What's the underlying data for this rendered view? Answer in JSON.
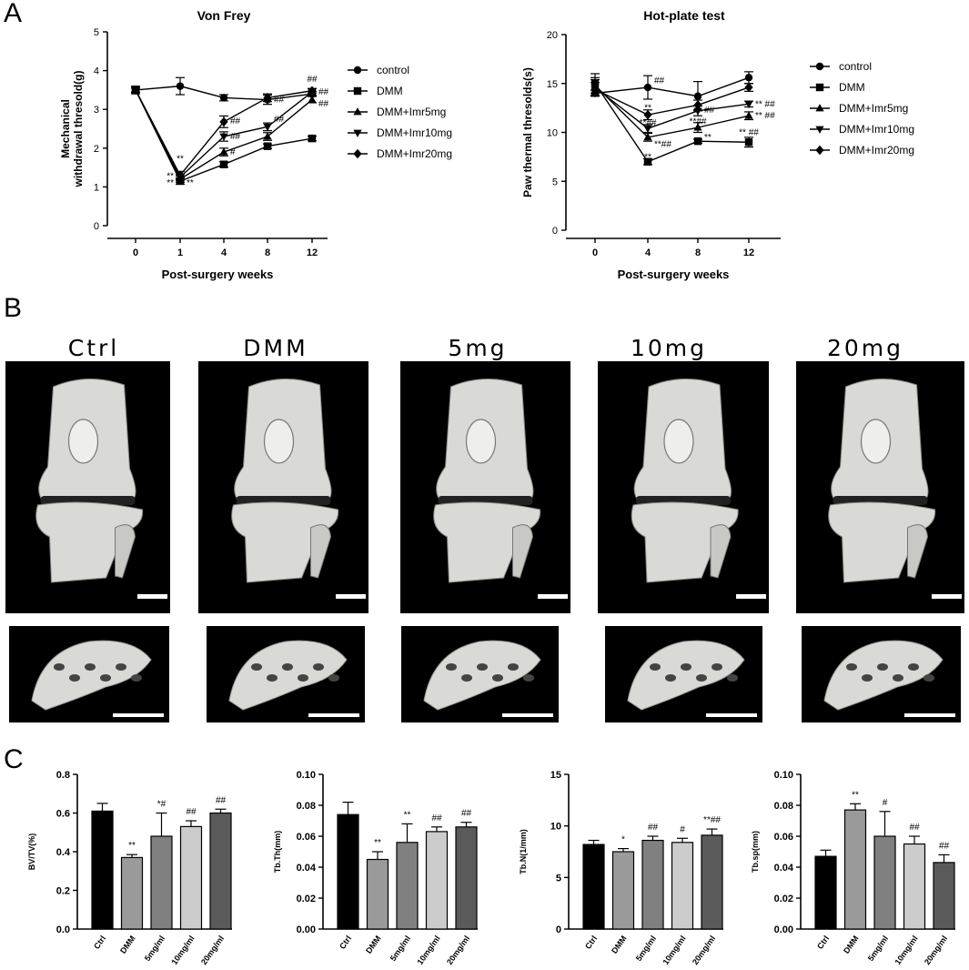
{
  "panels": {
    "a": "A",
    "b": "B",
    "c": "C"
  },
  "chart_data": [
    {
      "id": "vonfrey",
      "type": "line",
      "title": "Von Frey",
      "xlabel": "Post-surgery weeks",
      "ylabel_lines": [
        "Mechanical",
        "withdrawal thresold(g)"
      ],
      "categories": [
        "0",
        "1",
        "4",
        "8",
        "12"
      ],
      "ylim": [
        0,
        5
      ],
      "yticks": [
        "0",
        "1",
        "2",
        "3",
        "4",
        "5"
      ],
      "series": [
        {
          "name": "control",
          "marker": "circle",
          "values": [
            3.5,
            3.6,
            3.3,
            3.25,
            3.4
          ],
          "err": [
            0.1,
            0.22,
            0.08,
            0.12,
            0.06
          ]
        },
        {
          "name": "DMM",
          "marker": "square",
          "values": [
            3.5,
            1.15,
            1.58,
            2.05,
            2.25
          ],
          "err": [
            0.06,
            0.08,
            0.07,
            0.06,
            0.06
          ]
        },
        {
          "name": "DMM+Imr5mg",
          "marker": "triangle-up",
          "values": [
            3.5,
            1.2,
            1.9,
            2.3,
            3.25
          ],
          "err": [
            0.05,
            0.08,
            0.1,
            0.1,
            0.08
          ]
        },
        {
          "name": "DMM+Imr10mg",
          "marker": "triangle-down",
          "values": [
            3.5,
            1.25,
            2.3,
            2.55,
            3.45
          ],
          "err": [
            0.05,
            0.08,
            0.12,
            0.1,
            0.08
          ]
        },
        {
          "name": "DMM+Imr20mg",
          "marker": "diamond",
          "values": [
            3.5,
            1.3,
            2.68,
            3.3,
            3.48
          ],
          "err": [
            0.05,
            0.1,
            0.15,
            0.1,
            0.06
          ]
        }
      ],
      "annotations": [
        {
          "x": 1,
          "y": 1.72,
          "text": "**"
        },
        {
          "x": 1,
          "y": 1.28,
          "text": "**",
          "pos": "left"
        },
        {
          "x": 1,
          "y": 1.1,
          "text": "**",
          "pos": "left"
        },
        {
          "x": 1,
          "y": 1.1,
          "text": "**",
          "pos": "right"
        },
        {
          "x": 4,
          "y": 2.7,
          "text": "##",
          "pos": "right"
        },
        {
          "x": 4,
          "y": 2.3,
          "text": "##",
          "pos": "right"
        },
        {
          "x": 4,
          "y": 1.9,
          "text": "#",
          "pos": "right"
        },
        {
          "x": 8,
          "y": 2.75,
          "text": "##",
          "pos": "right"
        },
        {
          "x": 8,
          "y": 3.25,
          "text": "##",
          "pos": "right"
        },
        {
          "x": 12,
          "y": 3.78,
          "text": "##"
        },
        {
          "x": 12,
          "y": 3.45,
          "text": "##",
          "pos": "right"
        },
        {
          "x": 12,
          "y": 3.15,
          "text": "##",
          "pos": "right"
        }
      ]
    },
    {
      "id": "hotplate",
      "type": "line",
      "title": "Hot-plate test",
      "xlabel": "Post-surgery weeks",
      "ylabel_lines": [
        "Paw thermal thresolds(s)"
      ],
      "categories": [
        "0",
        "4",
        "8",
        "12"
      ],
      "ylim": [
        0,
        20
      ],
      "yticks": [
        "0",
        "5",
        "10",
        "15",
        "20"
      ],
      "series": [
        {
          "name": "control",
          "marker": "circle",
          "values": [
            14,
            14.6,
            13.7,
            15.6
          ],
          "err": [
            0.3,
            1.2,
            1.5,
            0.6
          ]
        },
        {
          "name": "DMM",
          "marker": "square",
          "values": [
            15,
            7,
            9.1,
            9
          ],
          "err": [
            1,
            0.3,
            0.2,
            0.5
          ]
        },
        {
          "name": "DMM+Imr5mg",
          "marker": "triangle-up",
          "values": [
            14.8,
            9.5,
            10.5,
            11.7
          ],
          "err": [
            0.8,
            0.4,
            0.5,
            0.4
          ]
        },
        {
          "name": "DMM+Imr10mg",
          "marker": "triangle-down",
          "values": [
            14.6,
            10.4,
            12.2,
            12.9
          ],
          "err": [
            0.8,
            0.4,
            0.5,
            0.3
          ]
        },
        {
          "name": "DMM+Imr20mg",
          "marker": "diamond",
          "values": [
            14.4,
            11.8,
            12.8,
            14.6
          ],
          "err": [
            0.7,
            0.5,
            0.5,
            0.4
          ]
        }
      ],
      "annotations": [
        {
          "x": 4,
          "y": 15.3,
          "text": "##",
          "pos": "right"
        },
        {
          "x": 4,
          "y": 12.5,
          "text": "**",
          "pos": "center"
        },
        {
          "x": 4,
          "y": 11.0,
          "text": "**##",
          "pos": "center"
        },
        {
          "x": 4,
          "y": 8.8,
          "text": "**##",
          "pos": "right"
        },
        {
          "x": 4,
          "y": 7.5,
          "text": "**",
          "pos": "center"
        },
        {
          "x": 8,
          "y": 12.3,
          "text": "##",
          "pos": "right"
        },
        {
          "x": 8,
          "y": 11.1,
          "text": "**##",
          "pos": "center"
        },
        {
          "x": 8,
          "y": 9.5,
          "text": "**",
          "pos": "right"
        },
        {
          "x": 12,
          "y": 12.9,
          "text": "** ##",
          "pos": "right"
        },
        {
          "x": 12,
          "y": 11.7,
          "text": "** ##",
          "pos": "right"
        },
        {
          "x": 12,
          "y": 10.0,
          "text": "** ##",
          "pos": "center"
        }
      ]
    },
    {
      "id": "bvtv",
      "type": "bar",
      "ylabel": "BV/TV(%)",
      "categories": [
        "Ctrl",
        "DMM",
        "5mg/ml",
        "10mg/ml",
        "20mg/ml"
      ],
      "values": [
        0.61,
        0.37,
        0.48,
        0.53,
        0.6
      ],
      "err": [
        0.04,
        0.015,
        0.12,
        0.03,
        0.02
      ],
      "sig": [
        "",
        "**",
        "*#",
        "##",
        "##"
      ],
      "ylim": [
        0,
        0.8
      ],
      "yticks": [
        "0.0",
        "0.2",
        "0.4",
        "0.6",
        "0.8"
      ]
    },
    {
      "id": "tbth",
      "type": "bar",
      "ylabel": "Tb.Th(mm)",
      "categories": [
        "Ctrl",
        "DMM",
        "5mg/ml",
        "10mg/ml",
        "20mg/ml"
      ],
      "values": [
        0.074,
        0.045,
        0.056,
        0.063,
        0.066
      ],
      "err": [
        0.008,
        0.005,
        0.012,
        0.003,
        0.003
      ],
      "sig": [
        "",
        "**",
        "**",
        "##",
        "##"
      ],
      "ylim": [
        0,
        0.1
      ],
      "yticks": [
        "0.00",
        "0.02",
        "0.04",
        "0.06",
        "0.08",
        "0.10"
      ]
    },
    {
      "id": "tbn",
      "type": "bar",
      "ylabel": "Tb.N(1/mm)",
      "categories": [
        "Ctrl",
        "DMM",
        "5mg/ml",
        "10mg/ml",
        "20mg/ml"
      ],
      "values": [
        8.2,
        7.5,
        8.6,
        8.4,
        9.1
      ],
      "err": [
        0.4,
        0.3,
        0.4,
        0.4,
        0.6
      ],
      "sig": [
        "",
        "*",
        "##",
        "#",
        "**##"
      ],
      "ylim": [
        0,
        15
      ],
      "yticks": [
        "0",
        "5",
        "10",
        "15"
      ]
    },
    {
      "id": "tbsp",
      "type": "bar",
      "ylabel": "Tb.sp(mm)",
      "categories": [
        "Ctrl",
        "DMM",
        "5mg/ml",
        "10mg/ml",
        "20mg/ml"
      ],
      "values": [
        0.047,
        0.077,
        0.06,
        0.055,
        0.043
      ],
      "err": [
        0.004,
        0.004,
        0.016,
        0.005,
        0.005
      ],
      "sig": [
        "",
        "**",
        "#",
        "##",
        "##"
      ],
      "ylim": [
        0,
        0.1
      ],
      "yticks": [
        "0.00",
        "0.02",
        "0.04",
        "0.06",
        "0.08",
        "0.10"
      ]
    }
  ],
  "ct": {
    "labels": [
      "Ctrl",
      "DMM",
      "5mg",
      "10mg",
      "20mg"
    ]
  },
  "colors": {
    "bar_fills": [
      "#000000",
      "#9a9a9a",
      "#808080",
      "#cccccc",
      "#5a5a5a"
    ],
    "bone": "#d9d9d6",
    "ct_background": "#000000"
  }
}
